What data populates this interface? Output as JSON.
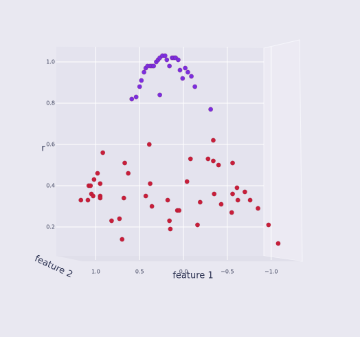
{
  "chart_data": {
    "type": "scatter",
    "x_label": "feature 1",
    "y_label": "r",
    "z_label": "feature 2",
    "xlim": [
      1.45,
      -1.3
    ],
    "ylim": [
      0.05,
      1.07
    ],
    "xticks": [
      {
        "value": 1,
        "label": "1.0"
      },
      0.5,
      {
        "value": 0,
        "label": "0.0"
      },
      {
        "value": -0.5,
        "label": "−0.5"
      },
      {
        "value": -1,
        "label": "−1.0"
      }
    ],
    "yticks": [
      0.2,
      0.4,
      0.6,
      0.8,
      {
        "value": 1,
        "label": "1.0"
      }
    ],
    "grid": true,
    "series": [
      {
        "color": "#7b2ee0",
        "x": [
          0.59,
          0.54,
          0.5,
          0.48,
          0.45,
          0.43,
          0.41,
          0.38,
          0.36,
          0.34,
          0.31,
          0.29,
          0.27,
          0.24,
          0.21,
          0.19,
          0.16,
          0.13,
          0.11,
          0.09,
          0.06,
          0.04,
          0.01,
          -0.02,
          -0.05,
          -0.09,
          -0.13,
          0.27,
          -0.31
        ],
        "values": [
          0.82,
          0.83,
          0.88,
          0.91,
          0.95,
          0.97,
          0.98,
          0.98,
          0.98,
          0.98,
          1.0,
          1.01,
          1.02,
          1.03,
          1.03,
          1.01,
          0.98,
          1.02,
          1.02,
          1.02,
          1.01,
          0.96,
          0.92,
          0.97,
          0.95,
          0.93,
          0.88,
          0.84,
          0.77
        ]
      },
      {
        "color": "#c81e3a",
        "x": [
          1.17,
          1.09,
          1.08,
          1.06,
          1.05,
          1.03,
          1.02,
          0.98,
          0.95,
          0.95,
          0.95,
          0.92,
          0.82,
          0.73,
          0.7,
          0.68,
          0.67,
          0.63,
          0.43,
          0.39,
          0.38,
          0.36,
          0.18,
          0.16,
          0.15,
          0.07,
          0.05,
          -0.04,
          -0.08,
          -0.16,
          -0.19,
          -0.28,
          -0.34,
          -0.34,
          -0.35,
          -0.4,
          -0.43,
          -0.55,
          -0.56,
          -0.56,
          -0.61,
          -0.62,
          -0.7,
          -0.76,
          -0.85,
          -0.97,
          -1.08
        ],
        "values": [
          0.33,
          0.33,
          0.4,
          0.4,
          0.36,
          0.35,
          0.43,
          0.46,
          0.41,
          0.35,
          0.34,
          0.56,
          0.23,
          0.24,
          0.14,
          0.34,
          0.51,
          0.46,
          0.35,
          0.6,
          0.41,
          0.3,
          0.33,
          0.23,
          0.19,
          0.28,
          0.28,
          0.42,
          0.53,
          0.21,
          0.32,
          0.53,
          0.52,
          0.62,
          0.36,
          0.5,
          0.31,
          0.27,
          0.36,
          0.51,
          0.39,
          0.33,
          0.37,
          0.33,
          0.29,
          0.21,
          0.12
        ]
      }
    ]
  }
}
